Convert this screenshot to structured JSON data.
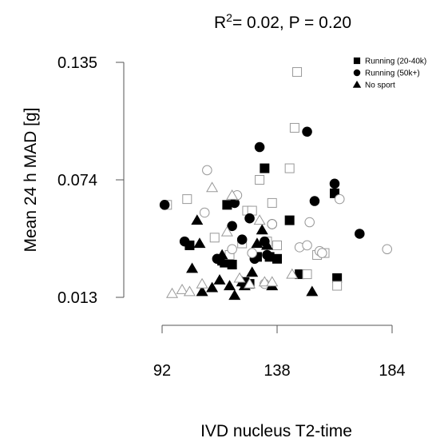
{
  "chart_data": {
    "type": "scatter",
    "title": "R²= 0.02, P = 0.20",
    "title_main": "R",
    "title_sup": "2",
    "title_rest": "= 0.02, P = 0.20",
    "xlabel": "IVD nucleus T2-time",
    "ylabel": "Mean 24 h MAD [g]",
    "xlim": [
      89,
      185
    ],
    "ylim": [
      0.01,
      0.138
    ],
    "x_ticks": [
      92,
      138,
      184
    ],
    "x_tick_labels": [
      "92",
      "138",
      "184"
    ],
    "y_ticks": [
      0.013,
      0.074,
      0.135
    ],
    "y_tick_labels": [
      "0.013",
      "0.074",
      "0.135"
    ],
    "legend_position": "top-right",
    "legend": [
      {
        "label": "Running (20-40k)",
        "marker": "square"
      },
      {
        "label": "Running (50k+)",
        "marker": "circle"
      },
      {
        "label": "No sport",
        "marker": "triangle"
      }
    ],
    "series": [
      {
        "name": "Running (20-40k)",
        "marker": "square",
        "fill": "filled",
        "x": [
          103,
          118,
          120,
          116,
          117,
          125,
          127,
          130,
          133,
          135,
          138,
          143,
          147,
          161,
          162
        ],
        "y": [
          0.04,
          0.061,
          0.03,
          0.032,
          0.031,
          0.021,
          0.02,
          0.034,
          0.08,
          0.034,
          0.033,
          0.053,
          0.025,
          0.067,
          0.023
        ]
      },
      {
        "name": "Running (20-40k)",
        "marker": "square",
        "fill": "open",
        "x": [
          94,
          102,
          113,
          119,
          124,
          126,
          128,
          131,
          134,
          136,
          138,
          143,
          145,
          146,
          150,
          154,
          157,
          162
        ],
        "y": [
          0.061,
          0.064,
          0.044,
          0.035,
          0.041,
          0.058,
          0.058,
          0.074,
          0.042,
          0.062,
          0.04,
          0.08,
          0.101,
          0.13,
          0.025,
          0.035,
          0.036,
          0.019
        ]
      },
      {
        "name": "Running (50k+)",
        "marker": "circle",
        "fill": "filled",
        "x": [
          93,
          101,
          114,
          120,
          121,
          124,
          127,
          129,
          131,
          133,
          134,
          136,
          150,
          153,
          161,
          171
        ],
        "y": [
          0.061,
          0.042,
          0.033,
          0.05,
          0.062,
          0.043,
          0.054,
          0.033,
          0.091,
          0.042,
          0.035,
          0.051,
          0.099,
          0.063,
          0.072,
          0.046
        ]
      },
      {
        "name": "Running (50k+)",
        "marker": "circle",
        "fill": "open",
        "x": [
          109,
          110,
          120,
          122,
          128,
          133,
          136,
          147,
          150,
          151,
          155,
          156,
          163,
          182
        ],
        "y": [
          0.057,
          0.079,
          0.038,
          0.066,
          0.036,
          0.02,
          0.051,
          0.039,
          0.04,
          0.052,
          0.037,
          0.036,
          0.064,
          0.038
        ]
      },
      {
        "name": "No sport",
        "marker": "triangle",
        "fill": "filled",
        "x": [
          104,
          106,
          107,
          108,
          112,
          115,
          116,
          119,
          121,
          124,
          125,
          128,
          130,
          132,
          134,
          136,
          152
        ],
        "y": [
          0.028,
          0.053,
          0.041,
          0.016,
          0.018,
          0.022,
          0.035,
          0.019,
          0.014,
          0.021,
          0.019,
          0.026,
          0.041,
          0.048,
          0.04,
          0.019,
          0.016
        ]
      },
      {
        "name": "No sport",
        "marker": "triangle",
        "fill": "open",
        "x": [
          96,
          100,
          103,
          108,
          112,
          118,
          120,
          123,
          127,
          131,
          133,
          136,
          144
        ],
        "y": [
          0.015,
          0.017,
          0.016,
          0.02,
          0.07,
          0.047,
          0.066,
          0.023,
          0.02,
          0.053,
          0.021,
          0.021,
          0.025
        ]
      }
    ]
  }
}
